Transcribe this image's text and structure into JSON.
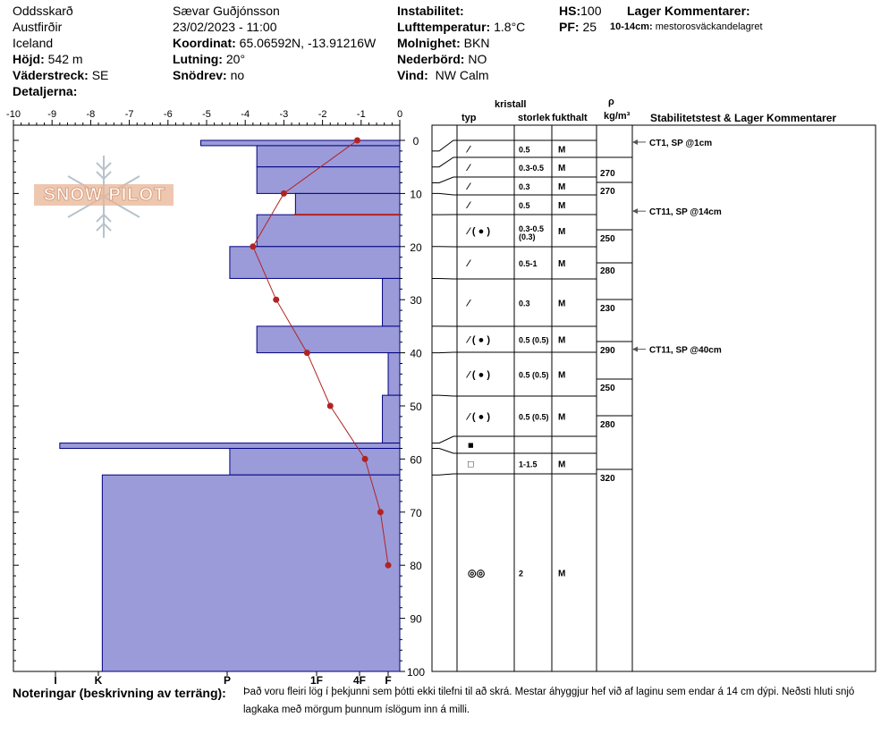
{
  "header": {
    "location": "Oddsskarð",
    "region": "Austfirðir",
    "country": "Iceland",
    "elevation_label": "Höjd:",
    "elevation_value": "542 m",
    "aspect_label": "Väderstreck:",
    "aspect_value": "SE",
    "details_label": "Detaljerna:",
    "observer": "Sævar Guðjónsson",
    "datetime": "23/02/2023 - 11:00",
    "coord_label": "Koordinat:",
    "coord_value": "65.06592N, -13.91216W",
    "slope_label": "Lutning:",
    "slope_value": "20°",
    "drift_label": "Snödrev:",
    "drift_value": "no",
    "instability_label": "Instabilitet:",
    "airtemp_label": "Lufttemperatur:",
    "airtemp_value": "1.8°C",
    "cloud_label": "Molnighet:",
    "cloud_value": "BKN",
    "precip_label": "Nederbörd:",
    "precip_value": "NO",
    "wind_label": "Vind:",
    "wind_value": "NW Calm",
    "hs_label": "HS:",
    "hs_value": "100",
    "pf_label": "PF:",
    "pf_value": "25",
    "layer_comments_label": "Lager Kommentarer:",
    "layer_comment_depth": "10-14cm:",
    "layer_comment_text": "mestorosväckandelagret"
  },
  "watermark": "SNOW PILOT",
  "notes": {
    "label": "Noteringar (beskrivning av terräng):",
    "line1": "Það voru fleiri lög í þekjunni sem þótti ekki tilefni til að skrá. Mestar áhyggjur hef við af laginu sem endar á 14 cm dýpi. Neðsti hluti snjó",
    "line2": "lagkaka með mörgum þunnum íslögum inn á milli."
  },
  "columns": {
    "crystal": "kristall",
    "type": "typ",
    "size": "storlek",
    "moisture": "fukthalt",
    "rho": "ρ",
    "rho_unit": "kg/m³",
    "tests": "Stabilitetstest & Lager Kommentarer"
  },
  "colors": {
    "hardness_fill": "#9b9bd9",
    "hardness_stroke": "#000080",
    "temp_line": "#b22222",
    "layer_line": "#b22222"
  },
  "chart_data": {
    "type": "bar",
    "x_top_ticks": [
      "-10",
      "-9",
      "-8",
      "-7",
      "-6",
      "-5",
      "-4",
      "-3",
      "-2",
      "-1",
      "0"
    ],
    "y_ticks": [
      "0",
      "10",
      "20",
      "30",
      "40",
      "50",
      "60",
      "70",
      "80",
      "90",
      "100"
    ],
    "hardness_ticks": [
      "I",
      "K",
      "P",
      "1F",
      "4F",
      "F"
    ],
    "ylim": [
      0,
      100
    ],
    "xlim_temperature": [
      -10,
      0
    ],
    "hardness_profile": [
      {
        "top": 0,
        "bottom": 1,
        "hardness": 5.15
      },
      {
        "top": 1,
        "bottom": 5,
        "hardness": 3.7
      },
      {
        "top": 5,
        "bottom": 10,
        "hardness": 3.7
      },
      {
        "top": 10,
        "bottom": 14,
        "hardness": 2.7
      },
      {
        "top": 14,
        "bottom": 20,
        "hardness": 3.7
      },
      {
        "top": 20,
        "bottom": 26,
        "hardness": 4.4
      },
      {
        "top": 26,
        "bottom": 35,
        "hardness": 0.45
      },
      {
        "top": 35,
        "bottom": 40,
        "hardness": 3.7
      },
      {
        "top": 40,
        "bottom": 48,
        "hardness": 0.3
      },
      {
        "top": 48,
        "bottom": 57,
        "hardness": 0.45
      },
      {
        "top": 57,
        "bottom": 58,
        "hardness": 8.8
      },
      {
        "top": 58,
        "bottom": 63,
        "hardness": 4.4
      },
      {
        "top": 63,
        "bottom": 100,
        "hardness": 7.7
      }
    ],
    "temperature_profile": [
      {
        "depth": 0,
        "temp": -1.1
      },
      {
        "depth": 10,
        "temp": -3.0
      },
      {
        "depth": 20,
        "temp": -3.8
      },
      {
        "depth": 30,
        "temp": -3.2
      },
      {
        "depth": 40,
        "temp": -2.4
      },
      {
        "depth": 50,
        "temp": -1.8
      },
      {
        "depth": 60,
        "temp": -0.9
      },
      {
        "depth": 70,
        "temp": -0.5
      },
      {
        "depth": 80,
        "temp": -0.3
      }
    ],
    "critical_layer_depth": 14,
    "layers": [
      {
        "top": 0,
        "bottom": 2,
        "type": "",
        "size": "",
        "moisture": ""
      },
      {
        "top": 2,
        "bottom": 5,
        "type": "⁄",
        "size": "0.5",
        "moisture": "M"
      },
      {
        "top": 5,
        "bottom": 8,
        "type": "⁄",
        "size": "0.3-0.5",
        "moisture": "M"
      },
      {
        "top": 8,
        "bottom": 10,
        "type": "⁄",
        "size": "0.3",
        "moisture": "M"
      },
      {
        "top": 10,
        "bottom": 14,
        "type": "⁄",
        "size": "0.5",
        "moisture": "M"
      },
      {
        "top": 14,
        "bottom": 20,
        "type": "⁄ ( ● )",
        "size": "0.3-0.5 (0.3)",
        "moisture": "M"
      },
      {
        "top": 20,
        "bottom": 26,
        "type": "⁄",
        "size": "0.5-1",
        "moisture": "M"
      },
      {
        "top": 26,
        "bottom": 35,
        "type": "⁄",
        "size": "0.3",
        "moisture": "M"
      },
      {
        "top": 35,
        "bottom": 40,
        "type": "⁄ ( ● )",
        "size": "0.5 (0.5)",
        "moisture": "M"
      },
      {
        "top": 40,
        "bottom": 48,
        "type": "⁄ ( ● )",
        "size": "0.5 (0.5)",
        "moisture": "M"
      },
      {
        "top": 48,
        "bottom": 57,
        "type": "⁄ ( ● )",
        "size": "0.5 (0.5)",
        "moisture": "M"
      },
      {
        "top": 57,
        "bottom": 58,
        "type": "■",
        "size": "",
        "moisture": ""
      },
      {
        "top": 58,
        "bottom": 63,
        "type": "□",
        "size": "1-1.5",
        "moisture": "M"
      },
      {
        "top": 63,
        "bottom": 100,
        "type": "◎◎",
        "size": "2",
        "moisture": "M"
      }
    ],
    "densities": [
      {
        "top": 5,
        "bottom": 8,
        "value": "270"
      },
      {
        "top": 8,
        "bottom": 14,
        "value": "270"
      },
      {
        "top": 20,
        "bottom": 26,
        "value": "250"
      },
      {
        "top": 26,
        "bottom": 30,
        "value": "280"
      },
      {
        "top": 30,
        "bottom": 38,
        "value": "230"
      },
      {
        "top": 38,
        "bottom": 42,
        "value": "290"
      },
      {
        "top": 42,
        "bottom": 48,
        "value": "250"
      },
      {
        "top": 48,
        "bottom": 62,
        "value": "280"
      },
      {
        "top": 62,
        "bottom": 64,
        "value": "320"
      }
    ],
    "tests": [
      {
        "depth": 1,
        "text": "CT1, SP @1cm"
      },
      {
        "depth": 14,
        "text": "CT11, SP @14cm"
      },
      {
        "depth": 40,
        "text": "CT11, SP @40cm"
      }
    ]
  }
}
